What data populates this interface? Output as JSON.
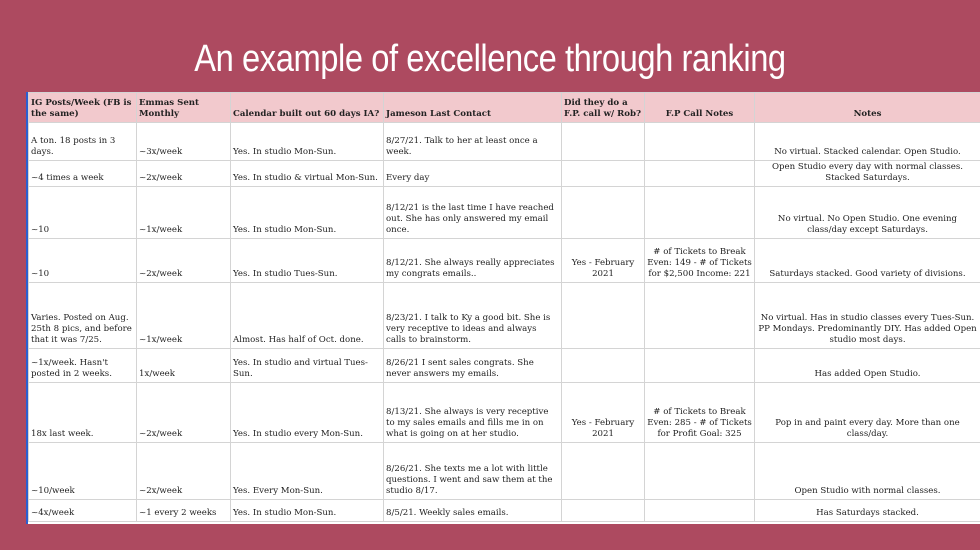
{
  "title": "An example of excellence through ranking",
  "table": {
    "headers": [
      "IG Posts/Week (FB is the same)",
      "Emmas Sent Monthly",
      "Calendar built out 60 days IA?",
      "Jameson Last Contact",
      "Did they do a F.P. call w/ Rob?",
      "F.P Call Notes",
      "Notes"
    ],
    "rows": [
      [
        "A ton. 18 posts in 3 days.",
        "~3x/week",
        "Yes. In studio Mon-Sun.",
        "8/27/21. Talk to her at least once a week.",
        "",
        "",
        "No virtual. Stacked calendar. Open Studio."
      ],
      [
        "~4 times a week",
        "~2x/week",
        "Yes. In studio & virtual Mon-Sun.",
        "Every day",
        "",
        "",
        "Open Studio every day with normal classes. Stacked Saturdays."
      ],
      [
        "~10",
        "~1x/week",
        "Yes. In studio Mon-Sun.",
        "8/12/21 is the last time I have reached out. She has only answered my email once.",
        "",
        "",
        "No virtual. No Open Studio. One evening class/day except Saturdays."
      ],
      [
        "~10",
        "~2x/week",
        "Yes. In studio Tues-Sun.",
        "8/12/21. She always really appreciates my congrats emails..",
        "Yes - February 2021",
        "# of Tickets to Break Even: 149 - # of Tickets for $2,500 Income: 221",
        "Saturdays stacked. Good variety of divisions."
      ],
      [
        "Varies. Posted on Aug. 25th 8 pics, and before that it was 7/25.",
        "~1x/week",
        "Almost. Has half of Oct. done.",
        "8/23/21. I talk to Ky a good bit. She is very receptive to ideas and always calls to brainstorm.",
        "",
        "",
        "No virtual. Has in studio classes every Tues-Sun. PP Mondays. Predominantly DIY. Has added Open studio most days."
      ],
      [
        "~1x/week. Hasn't posted in 2 weeks.",
        "1x/week",
        "Yes. In studio and virtual Tues-Sun.",
        "8/26/21 I sent sales congrats. She never answers my emails.",
        "",
        "",
        "Has added Open Studio."
      ],
      [
        "18x last week.",
        "~2x/week",
        "Yes. In studio every Mon-Sun.",
        "8/13/21. She always is very receptive to my sales emails and fills me in on what is going on at her studio.",
        "Yes - February 2021",
        "# of Tickets to Break Even: 285 - # of Tickets for Profit Goal: 325",
        "Pop in and paint every day. More than one class/day."
      ],
      [
        "~10/week",
        "~2x/week",
        "Yes. Every Mon-Sun.",
        "8/26/21. She texts me a lot with little questions. I went and saw them at the studio 8/17.",
        "",
        "",
        "Open Studio with normal classes."
      ],
      [
        "~4x/week",
        "~1 every 2 weeks",
        "Yes. In studio Mon-Sun.",
        "8/5/21. Weekly sales emails.",
        "",
        "",
        "Has Saturdays stacked."
      ]
    ]
  }
}
